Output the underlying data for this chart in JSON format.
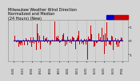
{
  "title": "Milwaukee Weather Wind Direction\nNormalized and Median\n(24 Hours) (New)",
  "background_color": "#d4d4d4",
  "plot_bg_color": "#d4d4d4",
  "bar_color": "#cc0000",
  "median_color": "#0000cc",
  "legend_bar_color": "#0000cc",
  "legend_line_color": "#cc0000",
  "num_points": 300,
  "ylim": [
    -1.5,
    1.5
  ],
  "yticks": [
    -1,
    0,
    1
  ],
  "ytick_labels": [
    "-1",
    "0",
    "1"
  ],
  "grid_color": "#aaaaaa",
  "title_fontsize": 3.5,
  "tick_fontsize": 2.8
}
